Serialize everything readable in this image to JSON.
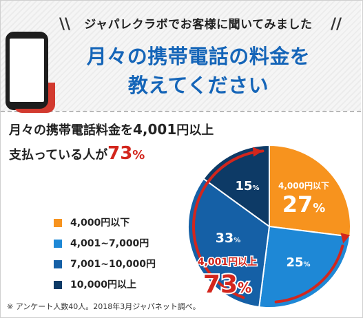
{
  "header": {
    "subtitle": "ジャパレクラボでお客様に聞いてみました",
    "title_line1": "月々の携帯電話の料金を",
    "title_line2": "教えてください"
  },
  "stats": {
    "line1_pre": "月々の携帯電話料金を",
    "line1_num": "4,001",
    "line1_post": "円以上",
    "line2_pre": "支払っている人が",
    "line2_pct": "73",
    "line2_unit": "%"
  },
  "chart_data": {
    "type": "pie",
    "categories": [
      "4,000円以下",
      "4,001~7,000円",
      "7,001~10,000円",
      "10,000円以上"
    ],
    "values": [
      27,
      25,
      33,
      15
    ],
    "colors": [
      "#f7931e",
      "#1e88d6",
      "#1560a6",
      "#0d3a66"
    ],
    "slice_labels": [
      "27",
      "25",
      "33",
      "15"
    ],
    "slice_unit": "%",
    "inner_label_first": "4,000円以下",
    "highlight_label": "4,001円以上",
    "highlight_value": "73",
    "highlight_unit": "%",
    "legend_position": "left",
    "arrow_color": "#d3261d"
  },
  "note": "※ アンケート人数40人。2018年3月ジャパネット調べ。"
}
